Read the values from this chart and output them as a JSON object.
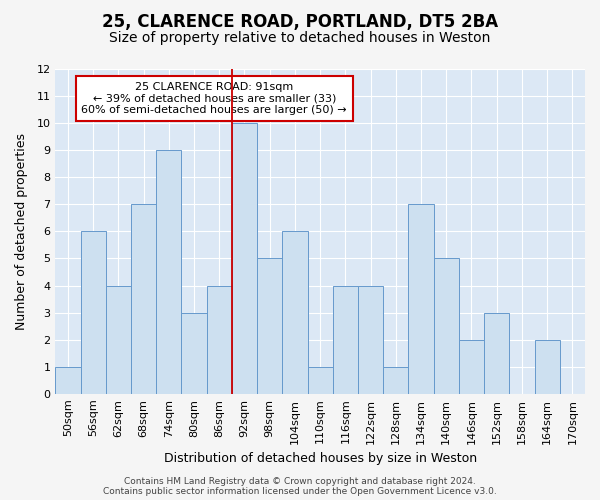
{
  "title": "25, CLARENCE ROAD, PORTLAND, DT5 2BA",
  "subtitle": "Size of property relative to detached houses in Weston",
  "xlabel": "Distribution of detached houses by size in Weston",
  "ylabel": "Number of detached properties",
  "footer_line1": "Contains HM Land Registry data © Crown copyright and database right 2024.",
  "footer_line2": "Contains public sector information licensed under the Open Government Licence v3.0.",
  "categories": [
    "50sqm",
    "56sqm",
    "62sqm",
    "68sqm",
    "74sqm",
    "80sqm",
    "86sqm",
    "92sqm",
    "98sqm",
    "104sqm",
    "110sqm",
    "116sqm",
    "122sqm",
    "128sqm",
    "134sqm",
    "140sqm",
    "146sqm",
    "152sqm",
    "158sqm",
    "164sqm",
    "170sqm"
  ],
  "values": [
    1,
    6,
    4,
    7,
    9,
    3,
    4,
    10,
    5,
    6,
    1,
    4,
    4,
    1,
    7,
    5,
    2,
    3,
    0,
    2,
    0
  ],
  "bar_color": "#cde0f0",
  "bar_edgecolor": "#6699cc",
  "highlight_index": 7,
  "highlight_line_color": "#cc0000",
  "annotation_line1": "25 CLARENCE ROAD: 91sqm",
  "annotation_line2": "← 39% of detached houses are smaller (33)",
  "annotation_line3": "60% of semi-detached houses are larger (50) →",
  "annotation_box_edgecolor": "#cc0000",
  "annotation_box_facecolor": "#ffffff",
  "ylim": [
    0,
    12
  ],
  "yticks": [
    0,
    1,
    2,
    3,
    4,
    5,
    6,
    7,
    8,
    9,
    10,
    11,
    12
  ],
  "bg_color": "#dce8f5",
  "grid_color": "#ffffff",
  "title_fontsize": 12,
  "subtitle_fontsize": 10,
  "axis_label_fontsize": 9,
  "tick_fontsize": 8,
  "annotation_fontsize": 8,
  "footer_fontsize": 6.5
}
